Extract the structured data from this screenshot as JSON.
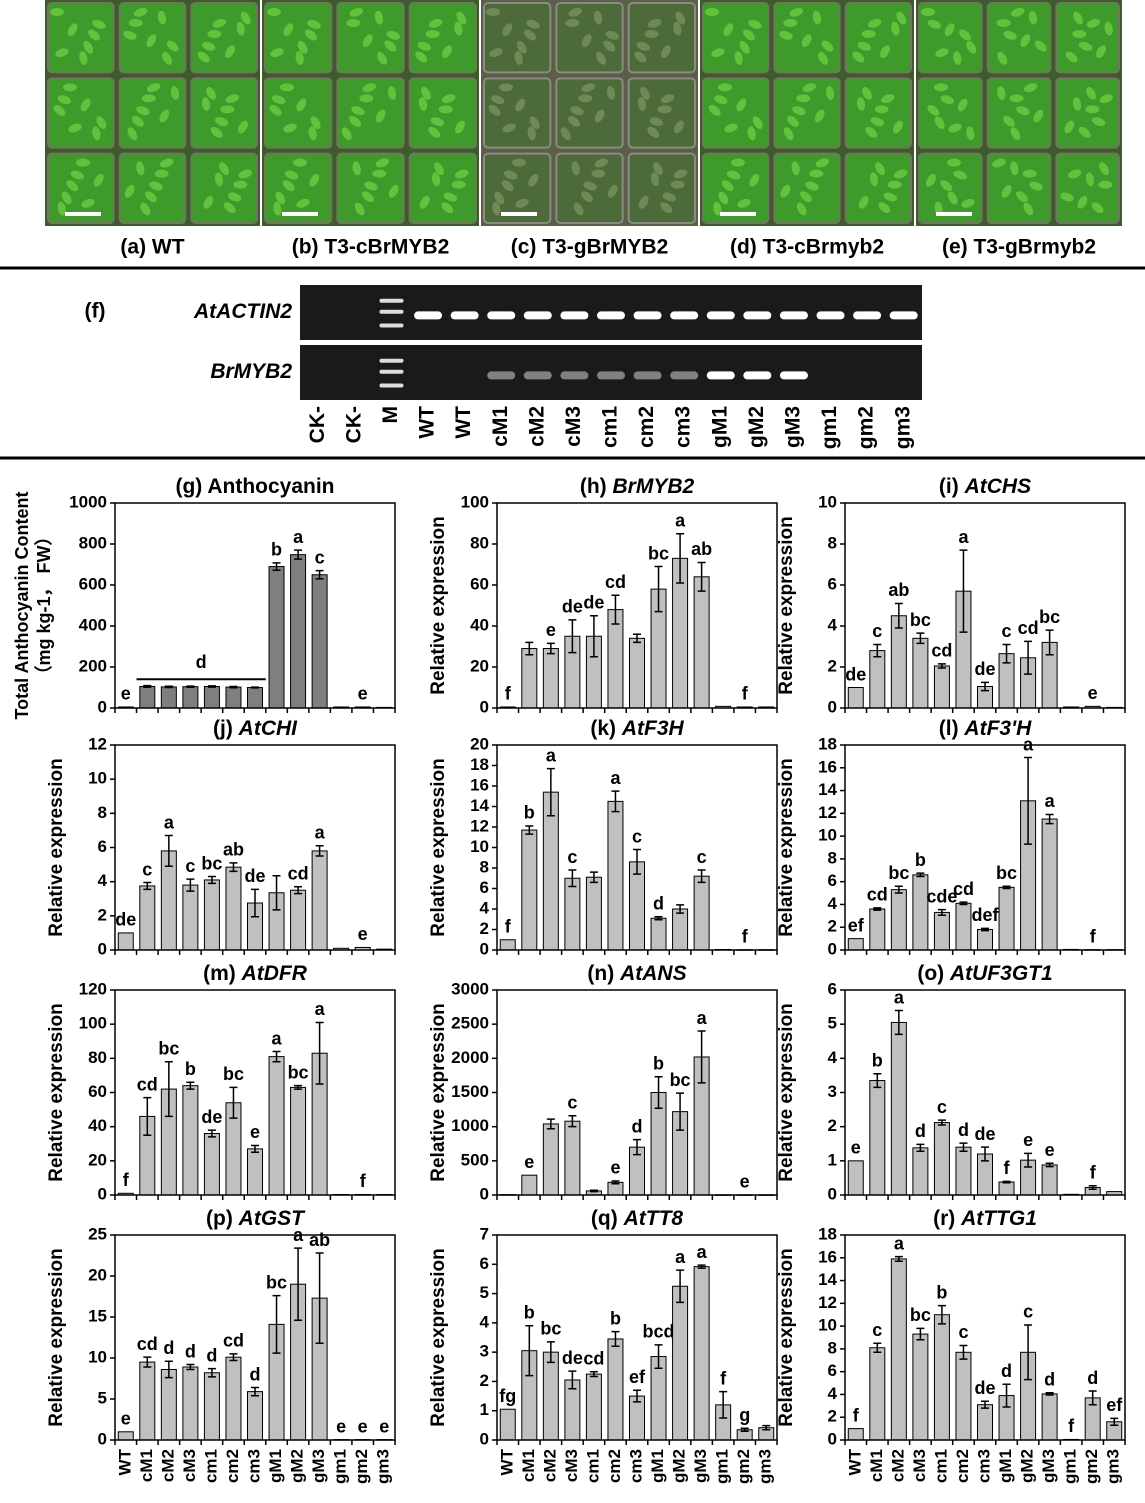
{
  "photo_labels": [
    "(a) WT",
    "(b) T3-cBrMYB2",
    "(c) T3-gBrMYB2",
    "(d) T3-cBrmyb2",
    "(e) T3-gBrmyb2"
  ],
  "gel": {
    "panel": "(f)",
    "rows": [
      "AtACTIN2",
      "BrMYB2"
    ],
    "lanes": [
      "CK-",
      "CK-",
      "M",
      "WT",
      "WT",
      "cM1",
      "cM2",
      "cM3",
      "cm1",
      "cm2",
      "cm3",
      "gM1",
      "gM2",
      "gM3",
      "gm1",
      "gm2",
      "gm3"
    ]
  },
  "chart_data": [
    {
      "type": "bar",
      "title": "(g) Anthocyanin",
      "title_italic": false,
      "ylabel": [
        "Total Anthocyanin Content",
        "（mg kg-1， FW）"
      ],
      "color": "#7f7f7f",
      "ylim": [
        0,
        1000
      ],
      "yticks": [
        0,
        200,
        400,
        600,
        800,
        1000
      ],
      "values": [
        5,
        105,
        103,
        104,
        105,
        102,
        100,
        690,
        748,
        650,
        5,
        5,
        3
      ],
      "errors": [
        null,
        4,
        3,
        3,
        3,
        3,
        2,
        18,
        22,
        20,
        null,
        null,
        null
      ],
      "letters": [
        "e",
        null,
        null,
        null,
        null,
        null,
        null,
        "b",
        "a",
        "c",
        null,
        "e",
        null
      ],
      "group_label": "d"
    },
    {
      "type": "bar",
      "title": "(h) BrMYB2",
      "title_italic": true,
      "ylabel": "Relative expression",
      "color": "#c0c0c0",
      "ylim": [
        0,
        100
      ],
      "yticks": [
        0,
        20,
        40,
        60,
        80,
        100
      ],
      "values": [
        0.5,
        29,
        29,
        35,
        35,
        48,
        34,
        58,
        73,
        64,
        0.8,
        0.5,
        0.5
      ],
      "errors": [
        null,
        3,
        2.5,
        8,
        10,
        7,
        2,
        11,
        12,
        7,
        null,
        null,
        null
      ],
      "letters": [
        "f",
        null,
        "e",
        "de",
        "de",
        "cd",
        null,
        "bc",
        "a",
        "ab",
        null,
        "f",
        null
      ]
    },
    {
      "type": "bar",
      "title": "(i) AtCHS",
      "title_italic": true,
      "ylabel": "Relative expression",
      "color": "#c0c0c0",
      "ylim": [
        0,
        10
      ],
      "yticks": [
        0,
        2,
        4,
        6,
        8,
        10
      ],
      "values": [
        1,
        2.8,
        4.5,
        3.4,
        2.05,
        5.7,
        1.05,
        2.65,
        2.45,
        3.2,
        0.05,
        0.08,
        0.03
      ],
      "errors": [
        null,
        0.3,
        0.6,
        0.25,
        0.1,
        2,
        0.2,
        0.45,
        0.8,
        0.6,
        null,
        null,
        null
      ],
      "letters": [
        "de",
        "c",
        "ab",
        "bc",
        "cd",
        "a",
        "de",
        "c",
        "cd",
        "bc",
        null,
        "e",
        null
      ]
    },
    {
      "type": "bar",
      "title": "(j) AtCHI",
      "title_italic": true,
      "ylabel": "Relative expression",
      "color": "#c0c0c0",
      "ylim": [
        0,
        12
      ],
      "yticks": [
        0,
        2,
        4,
        6,
        8,
        10,
        12
      ],
      "values": [
        1,
        3.75,
        5.8,
        3.8,
        4.1,
        4.85,
        2.75,
        3.35,
        3.5,
        5.8,
        0.1,
        0.15,
        0.05
      ],
      "errors": [
        null,
        0.2,
        0.9,
        0.35,
        0.2,
        0.25,
        0.8,
        1,
        0.2,
        0.3,
        null,
        null,
        null
      ],
      "letters": [
        "de",
        "c",
        "a",
        "c",
        "bc",
        "ab",
        "de",
        null,
        "cd",
        "a",
        null,
        "e",
        null
      ]
    },
    {
      "type": "bar",
      "title": "(k) AtF3H",
      "title_italic": true,
      "ylabel": "Relative expression",
      "color": "#c0c0c0",
      "ylim": [
        0,
        20
      ],
      "yticks": [
        0,
        2,
        4,
        6,
        8,
        10,
        12,
        14,
        16,
        18,
        20
      ],
      "values": [
        1,
        11.7,
        15.4,
        7,
        7.1,
        14.5,
        8.6,
        3.1,
        4,
        7.2,
        0.05,
        0.03,
        0.03
      ],
      "errors": [
        null,
        0.4,
        2.3,
        0.8,
        0.5,
        1,
        1.2,
        0.15,
        0.4,
        0.6,
        null,
        null,
        null
      ],
      "letters": [
        "f",
        "b",
        "a",
        "c",
        null,
        "a",
        "c",
        "d",
        null,
        "c",
        null,
        "f",
        null
      ]
    },
    {
      "type": "bar",
      "title": "(l) AtF3'H",
      "title_italic": true,
      "ylabel": "Relative expression",
      "color": "#c0c0c0",
      "ylim": [
        0,
        18
      ],
      "yticks": [
        0,
        2,
        4,
        6,
        8,
        10,
        12,
        14,
        16,
        18
      ],
      "values": [
        1,
        3.6,
        5.3,
        6.6,
        3.3,
        4.1,
        1.8,
        5.5,
        13.1,
        11.5,
        0.05,
        0.03,
        0.03
      ],
      "errors": [
        null,
        0.1,
        0.3,
        0.15,
        0.25,
        0.1,
        0.1,
        0.1,
        3.8,
        0.4,
        null,
        null,
        null
      ],
      "letters": [
        "ef",
        "cd",
        "bc",
        "b",
        "cde",
        "cd",
        "def",
        "bc",
        "a",
        "a",
        null,
        "f",
        null
      ]
    },
    {
      "type": "bar",
      "title": "(m) AtDFR",
      "title_italic": true,
      "ylabel": "Relative expression",
      "color": "#c0c0c0",
      "ylim": [
        0,
        120
      ],
      "yticks": [
        0,
        20,
        40,
        60,
        80,
        100,
        120
      ],
      "values": [
        1,
        46,
        62,
        64,
        36,
        54,
        27,
        81,
        63,
        83,
        0.3,
        0.3,
        0.3
      ],
      "errors": [
        null,
        11,
        16,
        2,
        2,
        9,
        2,
        3,
        1,
        18,
        null,
        null,
        null
      ],
      "letters": [
        "f",
        "cd",
        "bc",
        "b",
        "de",
        "bc",
        "e",
        "a",
        "bc",
        "a",
        null,
        "f",
        null
      ]
    },
    {
      "type": "bar",
      "title": "(n) AtANS",
      "title_italic": true,
      "ylabel": "Relative expression",
      "color": "#c0c0c0",
      "ylim": [
        0,
        3000
      ],
      "yticks": [
        0,
        500,
        1000,
        1500,
        2000,
        2500,
        3000
      ],
      "values": [
        5,
        290,
        1040,
        1080,
        60,
        185,
        700,
        1500,
        1220,
        2020,
        2,
        2,
        2
      ],
      "errors": [
        null,
        null,
        70,
        80,
        10,
        20,
        110,
        230,
        270,
        380,
        null,
        null,
        null
      ],
      "letters": [
        null,
        "e",
        null,
        "c",
        null,
        "e",
        "d",
        "b",
        "bc",
        "a",
        null,
        "e",
        null
      ]
    },
    {
      "type": "bar",
      "title": "(o) AtUF3GT1",
      "title_italic": true,
      "ylabel": "Relative expression",
      "color": "#c0c0c0",
      "ylim": [
        0,
        6
      ],
      "yticks": [
        0,
        1,
        2,
        3,
        4,
        5,
        6
      ],
      "values": [
        1,
        3.35,
        5.05,
        1.38,
        2.12,
        1.4,
        1.2,
        0.38,
        1.02,
        0.88,
        0.02,
        0.22,
        0.1
      ],
      "errors": [
        null,
        0.2,
        0.35,
        0.1,
        0.07,
        0.12,
        0.2,
        0.02,
        0.2,
        0.05,
        null,
        0.05,
        null
      ],
      "letters": [
        "e",
        "b",
        "a",
        "d",
        "c",
        "d",
        "de",
        "f",
        "e",
        "e",
        null,
        "f",
        null
      ]
    },
    {
      "type": "bar",
      "title": "(p) AtGST",
      "title_italic": true,
      "ylabel": "Relative expression",
      "color": "#c0c0c0",
      "ylim": [
        0,
        25
      ],
      "yticks": [
        0,
        5,
        10,
        15,
        20,
        25
      ],
      "categories": [
        "WT",
        "cM1",
        "cM2",
        "cM3",
        "cm1",
        "cm2",
        "cm3",
        "gM1",
        "gM2",
        "gM3",
        "gm1",
        "gm2",
        "gm3"
      ],
      "values": [
        1,
        9.5,
        8.6,
        8.9,
        8.2,
        10.1,
        5.9,
        14.1,
        19,
        17.3,
        0.05,
        0.05,
        0.05
      ],
      "errors": [
        null,
        0.6,
        1,
        0.3,
        0.5,
        0.4,
        0.5,
        3.5,
        4.4,
        5.5,
        null,
        null,
        null
      ],
      "letters": [
        "e",
        "cd",
        "d",
        "d",
        "d",
        "cd",
        "d",
        "bc",
        "a",
        "ab",
        "e",
        "e",
        "e"
      ]
    },
    {
      "type": "bar",
      "title": "(q) AtTT8",
      "title_italic": true,
      "ylabel": "Relative expression",
      "color": "#c0c0c0",
      "ylim": [
        0,
        7
      ],
      "yticks": [
        0,
        1,
        2,
        3,
        4,
        5,
        6,
        7
      ],
      "categories": [
        "WT",
        "cM1",
        "cM2",
        "cM3",
        "cm1",
        "cm2",
        "cm3",
        "gM1",
        "gM2",
        "gM3",
        "gm1",
        "gm2",
        "gm3"
      ],
      "values": [
        1.05,
        3.05,
        3,
        2.05,
        2.25,
        3.45,
        1.5,
        2.85,
        5.25,
        5.92,
        1.2,
        0.35,
        0.42
      ],
      "errors": [
        null,
        0.85,
        0.35,
        0.3,
        0.08,
        0.25,
        0.2,
        0.4,
        0.55,
        0.05,
        0.45,
        0.05,
        0.07
      ],
      "letters": [
        "fg",
        "b",
        "bc",
        "de",
        "cd",
        "b",
        "ef",
        "bcd",
        "a",
        "a",
        "f",
        "g",
        null
      ]
    },
    {
      "type": "bar",
      "title": "(r) AtTTG1",
      "title_italic": true,
      "ylabel": "Relative expression",
      "color": "#c0c0c0",
      "ylim": [
        0,
        18
      ],
      "yticks": [
        0,
        2,
        4,
        6,
        8,
        10,
        12,
        14,
        16,
        18
      ],
      "categories": [
        "WT",
        "cM1",
        "cM2",
        "cM3",
        "cm1",
        "cm2",
        "cm3",
        "gM1",
        "gM2",
        "gM3",
        "gm1",
        "gm2",
        "gm3"
      ],
      "values": [
        1,
        8.1,
        15.9,
        9.3,
        11,
        7.7,
        3.1,
        3.9,
        7.7,
        4.05,
        0.05,
        3.7,
        1.6
      ],
      "errors": [
        null,
        0.4,
        0.2,
        0.5,
        0.8,
        0.6,
        0.3,
        1,
        2.4,
        0.1,
        null,
        0.6,
        0.3
      ],
      "letters": [
        "f",
        "c",
        "a",
        "bc",
        "b",
        "c",
        "de",
        "d",
        "c",
        "d",
        "f",
        "d",
        "ef"
      ]
    }
  ]
}
